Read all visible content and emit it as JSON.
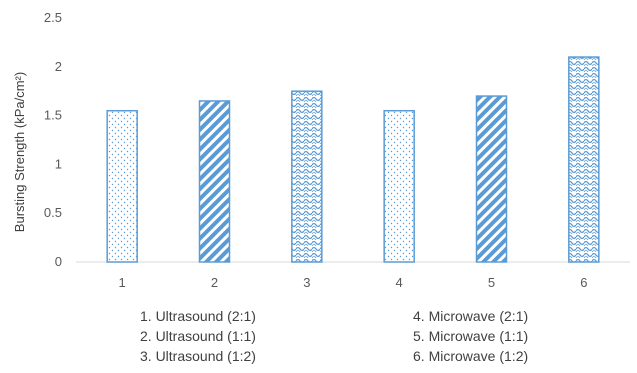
{
  "chart_data": {
    "type": "bar",
    "title": "",
    "xlabel": "",
    "ylabel": "Bursting Strength (kPa/cm²)",
    "categories": [
      "1",
      "2",
      "3",
      "4",
      "5",
      "6"
    ],
    "values": [
      1.55,
      1.65,
      1.75,
      1.55,
      1.7,
      2.1
    ],
    "ylim": [
      0,
      2.5
    ],
    "yticks": [
      "0",
      "0.5",
      "1",
      "1.5",
      "2",
      "2.5"
    ],
    "grid": false,
    "bar_color": "#5b9bd5",
    "bar_patterns": [
      "dots",
      "diagonal-stripes",
      "wave",
      "dots",
      "diagonal-stripes",
      "wave"
    ],
    "legend_position": "bottom"
  },
  "legend": {
    "left": [
      "1. Ultrasound (2:1)",
      "2. Ultrasound (1:1)",
      "3. Ultrasound (1:2)"
    ],
    "right": [
      "4. Microwave (2:1)",
      "5. Microwave (1:1)",
      "6. Microwave (1:2)"
    ]
  }
}
